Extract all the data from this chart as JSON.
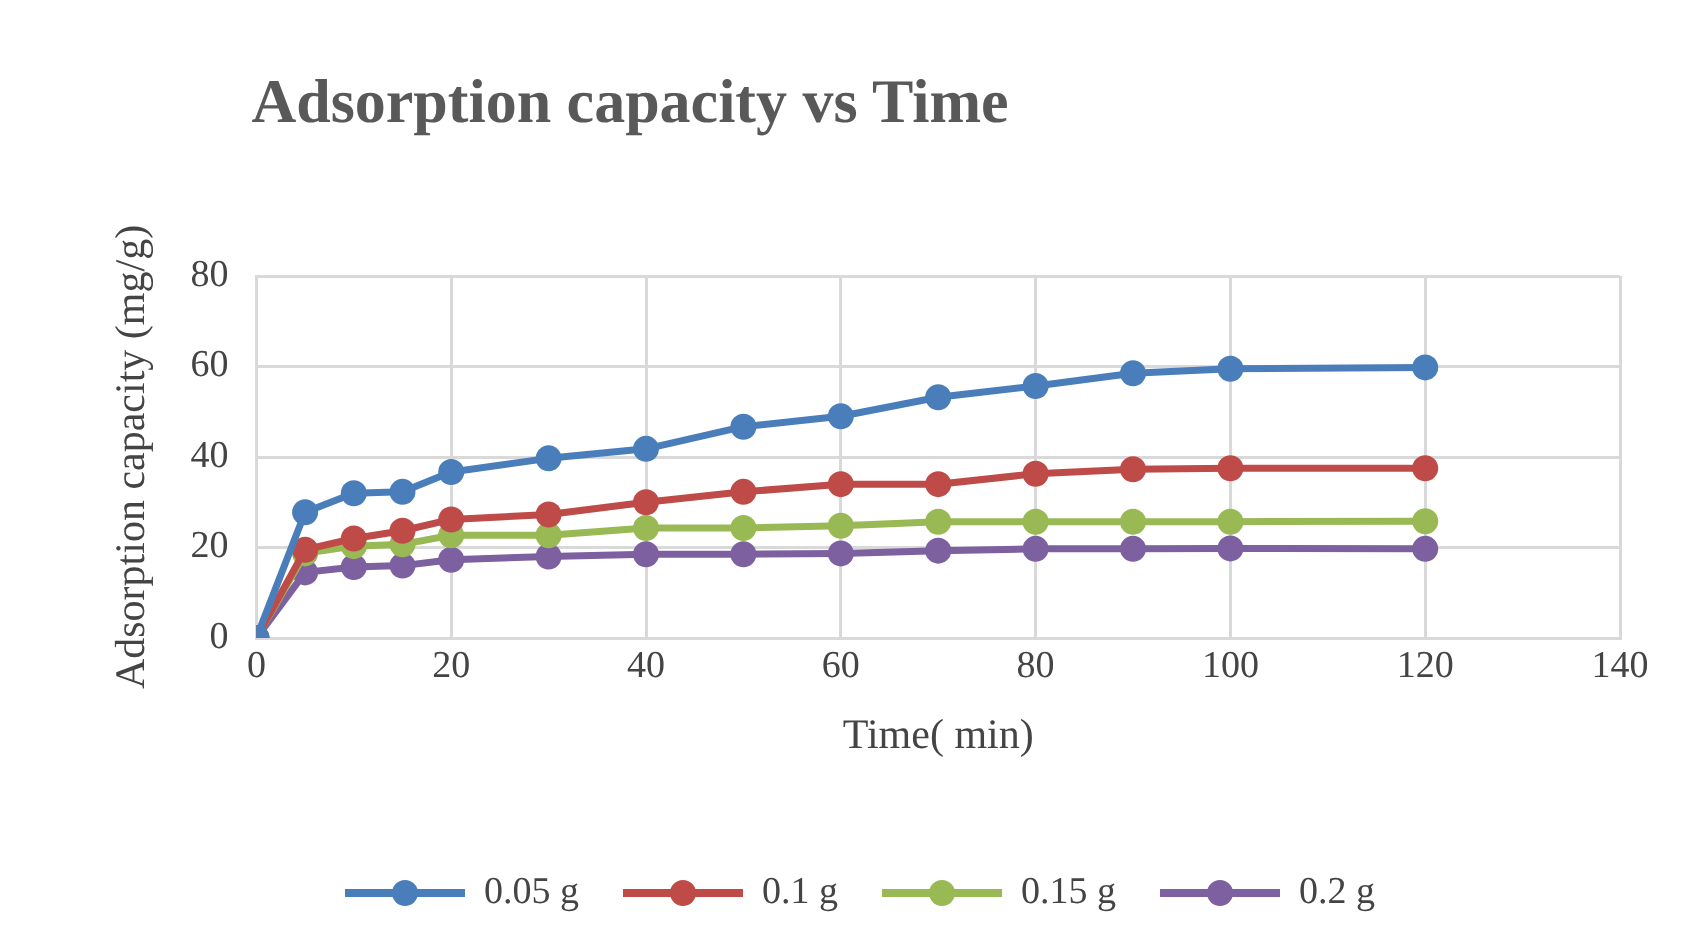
{
  "chart_data": {
    "type": "line",
    "title": "Adsorption capacity vs Time",
    "xlabel": "Time( min)",
    "ylabel": "Adsorption capacity (mg/g)",
    "x": [
      0,
      5,
      10,
      15,
      20,
      30,
      40,
      50,
      60,
      70,
      80,
      90,
      100,
      120
    ],
    "series": [
      {
        "name": "0.05 g",
        "color": "#4a7ebb",
        "values": [
          0,
          27.8,
          32,
          32.3,
          36.7,
          39.7,
          41.8,
          46.7,
          49,
          53.2,
          55.7,
          58.5,
          59.5,
          59.8
        ]
      },
      {
        "name": "0.1 g",
        "color": "#be4b48",
        "values": [
          0,
          19.5,
          22,
          23.7,
          26.2,
          27.3,
          30,
          32.3,
          34,
          34,
          36.3,
          37.3,
          37.5,
          37.5
        ]
      },
      {
        "name": "0.15 g",
        "color": "#98b954",
        "values": [
          0,
          18.7,
          20.3,
          20.7,
          22.7,
          22.7,
          24.3,
          24.3,
          24.8,
          25.7,
          25.7,
          25.7,
          25.7,
          25.8
        ]
      },
      {
        "name": "0.2 g",
        "color": "#7d60a0",
        "values": [
          0,
          14.5,
          15.7,
          16,
          17.3,
          18,
          18.5,
          18.5,
          18.7,
          19.3,
          19.7,
          19.7,
          19.8,
          19.7
        ]
      }
    ],
    "xlim": [
      0,
      140
    ],
    "xticks": [
      0,
      20,
      40,
      60,
      80,
      100,
      120,
      140
    ],
    "ylim": [
      0,
      80
    ],
    "yticks": [
      0,
      20,
      40,
      60,
      80
    ],
    "grid": true,
    "legend": "bottom",
    "marker": "circle",
    "line_style": "solid"
  }
}
